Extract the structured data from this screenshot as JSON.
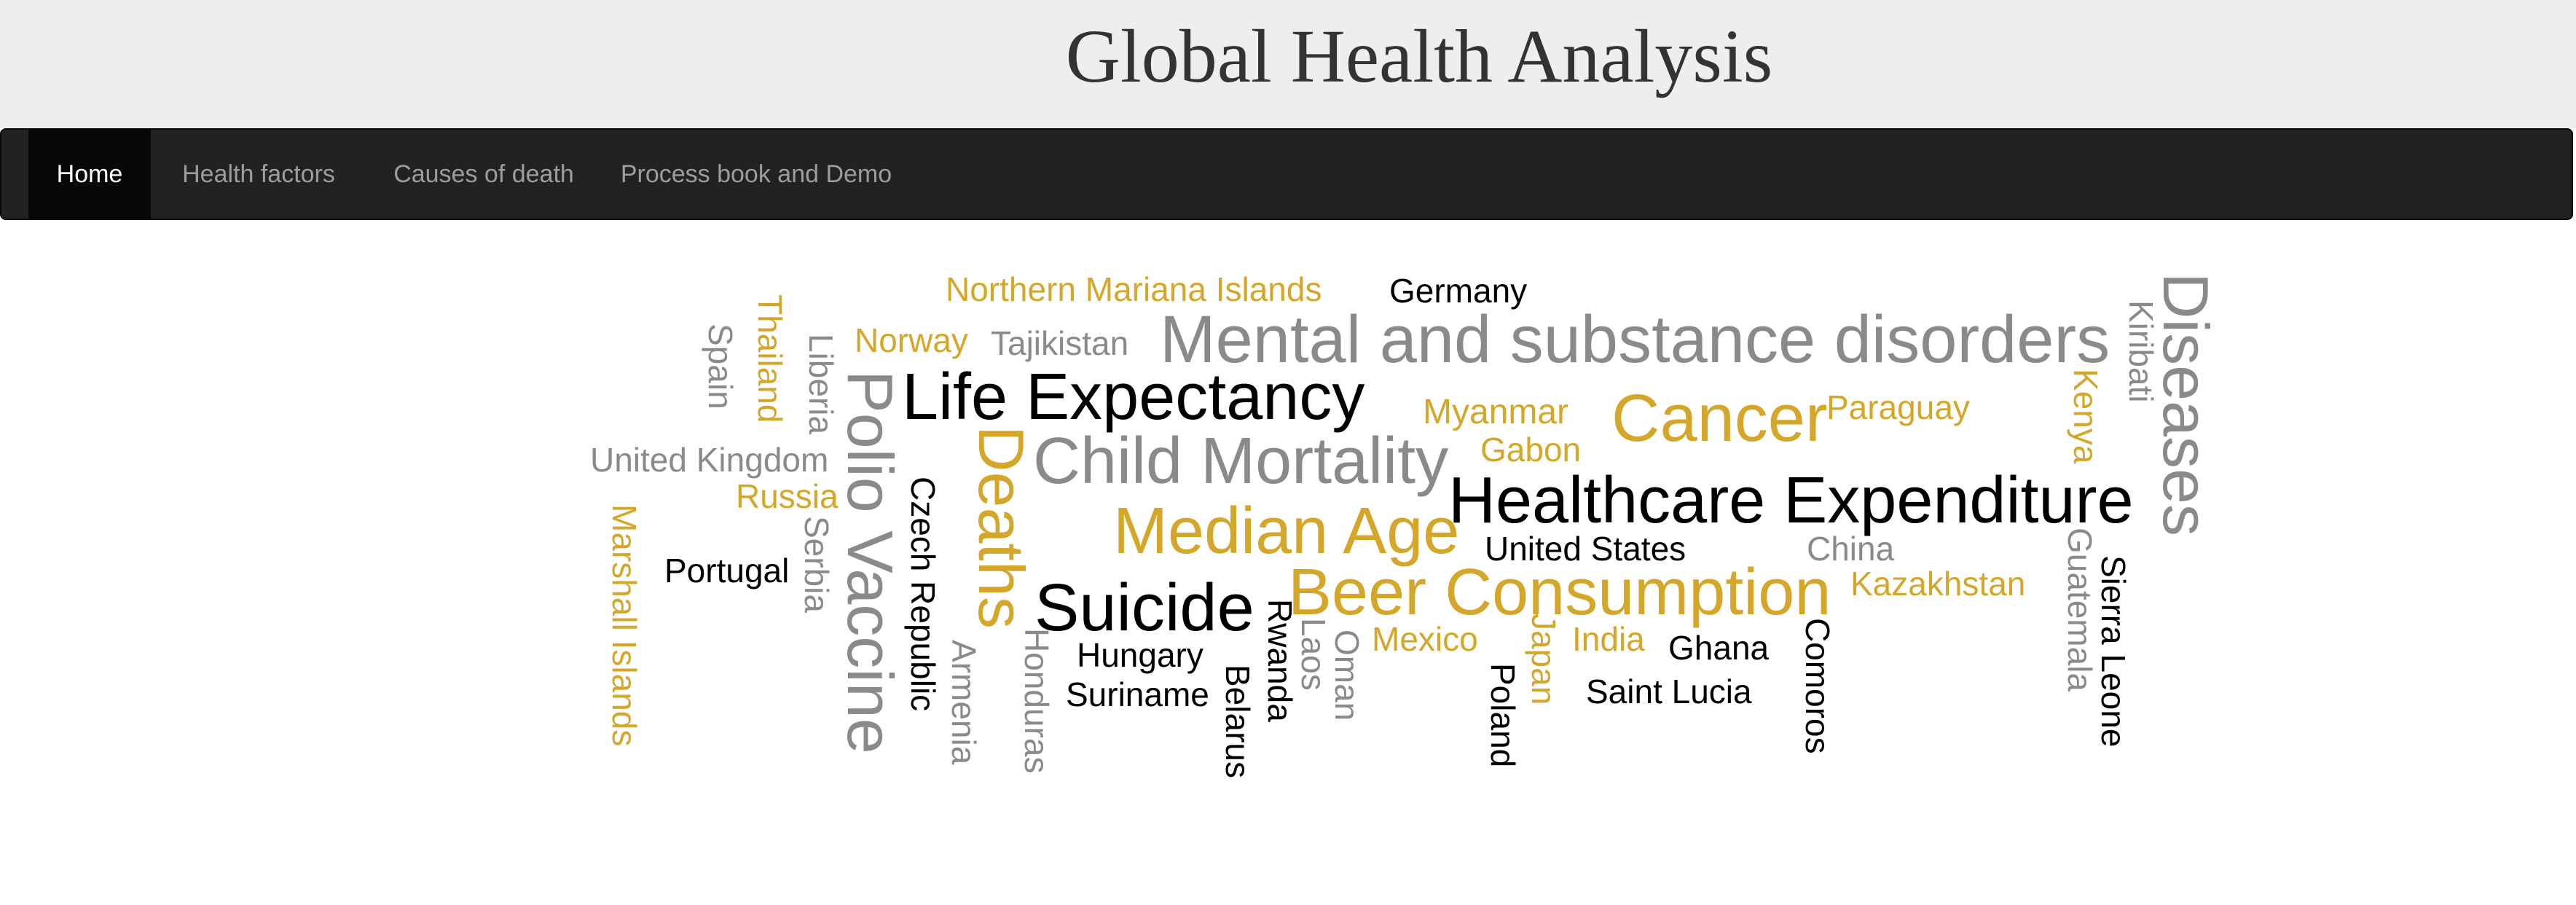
{
  "header": {
    "title": "Global Health Analysis"
  },
  "nav": {
    "items": [
      {
        "label": "Home",
        "active": true
      },
      {
        "label": "Health factors",
        "active": false
      },
      {
        "label": "Causes of death",
        "active": false
      },
      {
        "label": "Process book and Demo",
        "active": false
      }
    ]
  },
  "colors": {
    "gold": "#d4a62a",
    "gray": "#8a8a8a",
    "black": "#000000",
    "navbar": "#222222",
    "header_bg": "#eeeeee"
  },
  "word_cloud": {
    "words": [
      "Northern Mariana Islands",
      "Germany",
      "Norway",
      "Tajikistan",
      "Mental and substance disorders",
      "Life Expectancy",
      "Myanmar",
      "Cancer",
      "Paraguay",
      "Child Mortality",
      "Gabon",
      "United Kingdom",
      "Russia",
      "Healthcare Expenditure",
      "Median Age",
      "United States",
      "China",
      "Portugal",
      "Suicide",
      "Beer Consumption",
      "Kazakhstan",
      "Mexico",
      "India",
      "Ghana",
      "Hungary",
      "Suriname",
      "Saint Lucia",
      "Thailand",
      "Spain",
      "Liberia",
      "Polio Vaccine",
      "Deaths",
      "Czech Republic",
      "Serbia",
      "Marshall Islands",
      "Armenia",
      "Honduras",
      "Rwanda",
      "Belarus",
      "Laos",
      "Oman",
      "Japan",
      "Poland",
      "Comoros",
      "Kiribati",
      "Diseases",
      "Kenya",
      "Guatemala",
      "Sierra Leone"
    ]
  }
}
